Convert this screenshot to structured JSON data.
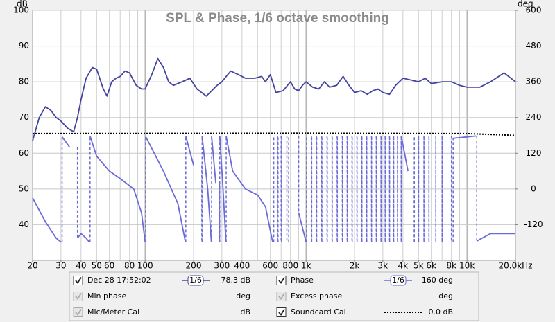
{
  "chart_data": {
    "type": "line",
    "title": "SPL & Phase, 1/6 octave smoothing",
    "y_unit": "dB",
    "y2_unit": "deg",
    "xscale": "log",
    "grid": true,
    "xlim": [
      20,
      20000
    ],
    "ylim": [
      30,
      100
    ],
    "y2lim": [
      -240,
      600
    ],
    "xticks": [
      20,
      30,
      40,
      50,
      60,
      80,
      100,
      200,
      300,
      400,
      600,
      800,
      {
        "value": 1000,
        "label": "1k"
      },
      {
        "value": 2000,
        "label": "2k"
      },
      {
        "value": 3000,
        "label": "3k"
      },
      {
        "value": 4000,
        "label": "4k"
      },
      {
        "value": 5000,
        "label": "5k"
      },
      {
        "value": 6000,
        "label": "6k"
      },
      {
        "value": 8000,
        "label": "8k"
      },
      {
        "value": 10000,
        "label": "10k"
      },
      {
        "value": 20000,
        "label": "20.0kHz"
      }
    ],
    "yticks": [
      40,
      50,
      60,
      70,
      80,
      90,
      100
    ],
    "y2ticks": [
      -120,
      0,
      120,
      240,
      360,
      480,
      600
    ],
    "series": [
      {
        "name": "Dec 28 17:52:02",
        "color": "#44449e",
        "axis": "y",
        "checked": true,
        "smoothing": "1/6",
        "readout": "78.3 dB",
        "x": [
          20,
          22,
          24,
          26,
          28,
          30,
          33,
          36,
          38,
          40,
          43,
          47,
          50,
          55,
          58,
          62,
          66,
          70,
          75,
          80,
          88,
          95,
          100,
          110,
          120,
          130,
          140,
          150,
          170,
          190,
          210,
          240,
          280,
          300,
          340,
          380,
          420,
          480,
          530,
          560,
          600,
          650,
          720,
          800,
          850,
          900,
          950,
          1000,
          1100,
          1200,
          1300,
          1400,
          1550,
          1700,
          1850,
          2000,
          2200,
          2400,
          2600,
          2800,
          3000,
          3300,
          3600,
          4000,
          4500,
          5000,
          5500,
          6000,
          7000,
          8000,
          9000,
          10000,
          12000,
          14000,
          17000,
          20000
        ],
        "values": [
          63.5,
          70,
          73,
          72,
          70,
          69,
          67,
          66,
          70,
          75,
          81,
          84,
          83.5,
          78,
          76,
          80,
          81,
          81.5,
          83,
          82.5,
          79,
          78,
          78,
          82,
          86.5,
          84,
          80,
          79,
          80,
          81,
          78,
          76,
          79,
          80,
          83,
          82,
          81,
          81,
          81.5,
          80,
          82,
          77,
          77.5,
          80,
          78,
          77.5,
          79,
          80,
          78.5,
          78,
          80,
          78.5,
          79,
          81.5,
          79,
          77,
          77.5,
          76.5,
          77.5,
          78,
          77,
          76.5,
          79,
          81,
          80.5,
          80,
          81,
          79.5,
          80,
          80,
          79,
          78.5,
          78.5,
          80,
          82.5,
          80
        ]
      },
      {
        "name": "Phase",
        "color": "#6a6ad8",
        "axis": "y2",
        "checked": true,
        "smoothing": "1/6",
        "readout": "160 deg",
        "x": [
          20,
          24,
          28,
          30,
          30.5,
          34,
          38,
          40,
          43,
          45,
          45.5,
          50,
          60,
          70,
          85,
          95,
          100,
          101,
          130,
          160,
          178,
          179,
          200,
          225,
          226,
          245,
          258,
          259,
          275,
          290,
          291,
          305,
          318,
          319,
          350,
          420,
          500,
          560,
          620,
          630,
          665,
          670,
          700,
          705,
          760,
          780,
          900,
          1000,
          1010,
          1080,
          1085,
          1160,
          1165,
          1250,
          1255,
          1350,
          1355,
          1450,
          1455,
          1560,
          1565,
          1680,
          1685,
          1800,
          1805,
          1930,
          1935,
          2070,
          2075,
          2220,
          2225,
          2380,
          2385,
          2550,
          2555,
          2730,
          2735,
          2920,
          2925,
          3100,
          3105,
          3300,
          3305,
          3500,
          3505,
          3700,
          3705,
          3900,
          3905,
          4300,
          4700,
          4705,
          5000,
          5005,
          5400,
          5405,
          5800,
          5805,
          6400,
          6405,
          7000,
          7005,
          8000,
          8200,
          11400,
          11500,
          14000,
          20000
        ],
        "values": [
          -30,
          -110,
          -165,
          -178,
          175,
          140,
          -165,
          -150,
          -165,
          -178,
          178,
          110,
          60,
          35,
          0,
          -80,
          -178,
          175,
          60,
          -50,
          -178,
          178,
          80,
          -178,
          178,
          0,
          -178,
          178,
          20,
          -178,
          178,
          0,
          -178,
          178,
          60,
          0,
          -20,
          -60,
          -178,
          178,
          -178,
          178,
          -178,
          178,
          -178,
          178,
          -80,
          -178,
          178,
          -178,
          178,
          -178,
          178,
          -178,
          178,
          -178,
          178,
          -178,
          178,
          -178,
          178,
          -178,
          178,
          -178,
          178,
          -178,
          178,
          -178,
          178,
          -178,
          178,
          -178,
          178,
          -178,
          178,
          -178,
          178,
          -178,
          178,
          -178,
          178,
          -178,
          178,
          -178,
          178,
          -178,
          178,
          -178,
          178,
          60,
          -178,
          178,
          -178,
          178,
          -178,
          178,
          -178,
          178,
          -178,
          178,
          -178,
          178,
          -178,
          170,
          178,
          -175,
          -150,
          -150
        ]
      },
      {
        "name": "Soundcard Cal",
        "color": "#000000",
        "axis": "y",
        "checked": true,
        "style": "dotted",
        "readout": "0.0 dB",
        "x": [
          20,
          1000,
          10000,
          20000
        ],
        "values": [
          65.5,
          65.6,
          65.5,
          65
        ]
      }
    ],
    "inactive_items": [
      {
        "name": "Min phase",
        "readout": "deg"
      },
      {
        "name": "Excess phase",
        "readout": "deg"
      },
      {
        "name": "Mic/Meter Cal",
        "readout": "dB"
      }
    ]
  }
}
